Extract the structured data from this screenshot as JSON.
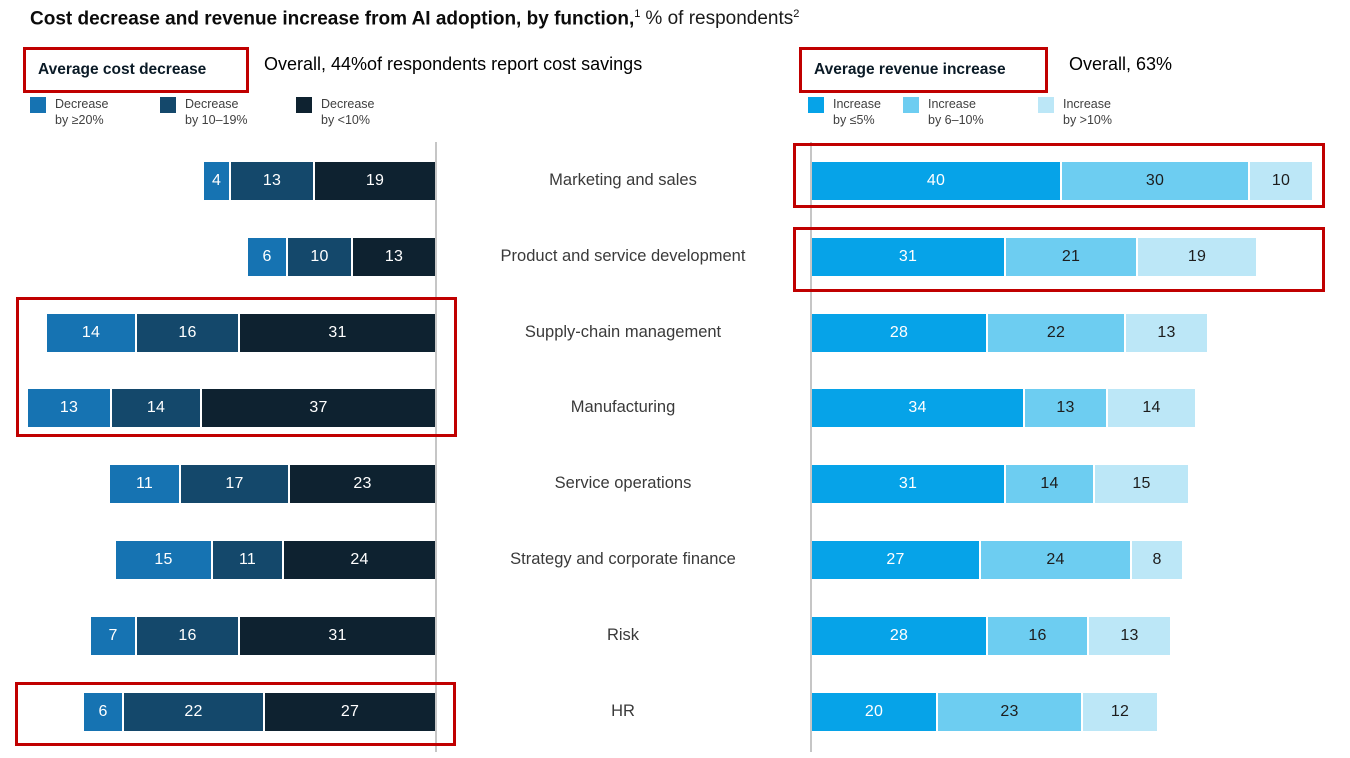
{
  "title": {
    "main": "Cost decrease and revenue increase from AI adoption, by function,",
    "footnote_1": "1",
    "suffix": "% of respondents",
    "footnote_2": "2"
  },
  "left_panel": {
    "box_label": "Average cost decrease",
    "overall_note": "Overall, 44%of respondents report cost savings",
    "legend": [
      {
        "line1": "Decrease",
        "line2": "by ≥20%",
        "color": "#1673B2"
      },
      {
        "line1": "Decrease",
        "line2": "by 10–19%",
        "color": "#14486B"
      },
      {
        "line1": "Decrease",
        "line2": "by <10%",
        "color": "#0E2230"
      }
    ]
  },
  "right_panel": {
    "box_label": "Average revenue increase",
    "overall_note": "Overall, 63%",
    "legend": [
      {
        "line1": "Increase",
        "line2": "by ≤5%",
        "color": "#06A3E8"
      },
      {
        "line1": "Increase",
        "line2": "by 6–10%",
        "color": "#6DCDF1"
      },
      {
        "line1": "Increase",
        "line2": "by >10%",
        "color": "#BCE7F7"
      }
    ]
  },
  "categories": [
    "Marketing and sales",
    "Product and service development",
    "Supply-chain management",
    "Manufacturing",
    "Service operations",
    "Strategy and corporate finance",
    "Risk",
    "HR"
  ],
  "chart_data": [
    {
      "type": "bar",
      "orientation": "horizontal",
      "stacked": true,
      "alignment": "right",
      "title": "Average cost decrease",
      "unit": "% of respondents",
      "categories": [
        "Marketing and sales",
        "Product and service development",
        "Supply-chain management",
        "Manufacturing",
        "Service operations",
        "Strategy and corporate finance",
        "Risk",
        "HR"
      ],
      "series": [
        {
          "name": "Decrease by ≥20%",
          "color": "#1673B2",
          "label_color": "#FFFFFF",
          "values": [
            4,
            6,
            14,
            13,
            11,
            15,
            7,
            6
          ]
        },
        {
          "name": "Decrease by 10–19%",
          "color": "#14486B",
          "label_color": "#FFFFFF",
          "values": [
            13,
            10,
            16,
            14,
            17,
            11,
            16,
            22
          ]
        },
        {
          "name": "Decrease by <10%",
          "color": "#0E2230",
          "label_color": "#FFFFFF",
          "values": [
            19,
            13,
            31,
            37,
            23,
            24,
            31,
            27
          ]
        }
      ]
    },
    {
      "type": "bar",
      "orientation": "horizontal",
      "stacked": true,
      "alignment": "left",
      "title": "Average revenue increase",
      "unit": "% of respondents",
      "categories": [
        "Marketing and sales",
        "Product and service development",
        "Supply-chain management",
        "Manufacturing",
        "Service operations",
        "Strategy and corporate finance",
        "Risk",
        "HR"
      ],
      "series": [
        {
          "name": "Increase by ≤5%",
          "color": "#06A3E8",
          "label_color": "#FFFFFF",
          "values": [
            40,
            31,
            28,
            34,
            31,
            27,
            28,
            20
          ]
        },
        {
          "name": "Increase by 6–10%",
          "color": "#6DCDF1",
          "label_color": "#1D1D1D",
          "values": [
            30,
            21,
            22,
            13,
            14,
            24,
            16,
            23
          ]
        },
        {
          "name": "Increase by >10%",
          "color": "#BCE7F7",
          "label_color": "#1D1D1D",
          "values": [
            10,
            19,
            13,
            14,
            15,
            8,
            13,
            12
          ]
        }
      ]
    }
  ],
  "highlight_color": "#C00000",
  "highlights": [
    "average-cost-decrease-label",
    "average-revenue-increase-label",
    "left-supply-chain-and-manufacturing-rows",
    "left-hr-row",
    "right-marketing-and-sales-row",
    "right-product-and-service-development-row"
  ]
}
